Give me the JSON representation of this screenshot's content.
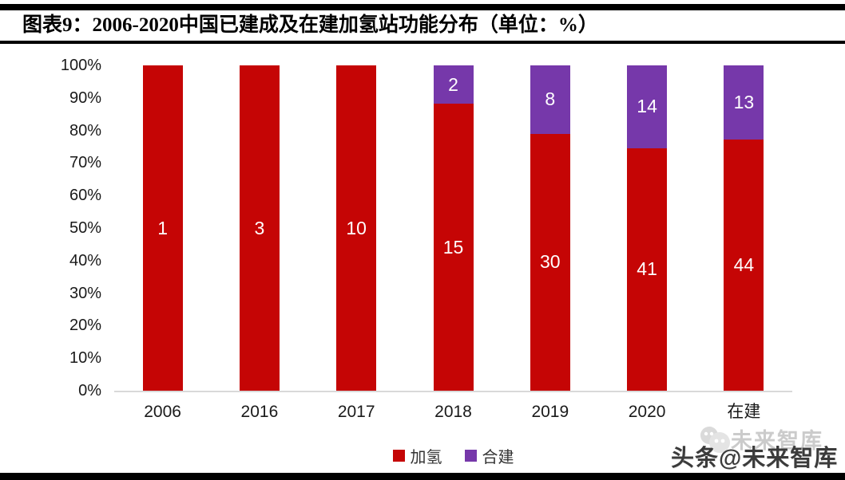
{
  "header": {
    "title": "图表9：2006-2020中国已建成及在建加氢站功能分布（单位：%）"
  },
  "chart_data": {
    "type": "bar",
    "stacked": true,
    "percent_total": true,
    "title": "2006-2020中国已建成及在建加氢站功能分布（单位：%）",
    "categories": [
      "2006",
      "2016",
      "2017",
      "2018",
      "2019",
      "2020",
      "在建"
    ],
    "series": [
      {
        "name": "加氢",
        "color": "#c50505",
        "values": [
          1,
          3,
          10,
          15,
          30,
          41,
          44
        ]
      },
      {
        "name": "合建",
        "color": "#7638aa",
        "values": [
          0,
          0,
          0,
          2,
          8,
          14,
          13
        ]
      }
    ],
    "xlabel": "",
    "ylabel": "",
    "ylim": [
      0,
      100
    ],
    "yticks": [
      "0%",
      "10%",
      "20%",
      "30%",
      "40%",
      "50%",
      "60%",
      "70%",
      "80%",
      "90%",
      "100%"
    ],
    "grid": false,
    "legend_position": "bottom",
    "bar_label_color": "#ffffff"
  },
  "watermark": {
    "light_text": "未来智库",
    "dark_text": "头条@未来智库"
  }
}
